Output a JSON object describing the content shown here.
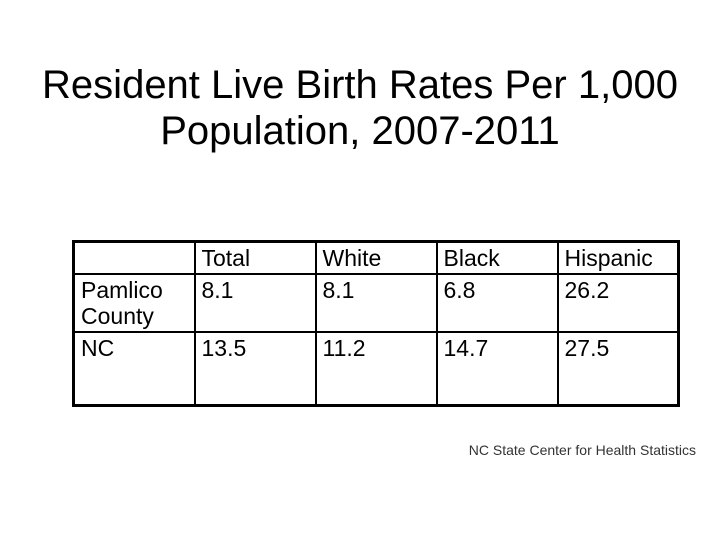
{
  "slide": {
    "background": "#ffffff",
    "text_color": "#000000",
    "title_line1": "Resident Live Birth Rates Per 1,000",
    "title_line2": "Population, 2007-2011",
    "credit": "NC State Center for Health Statistics"
  },
  "chart_data": {
    "type": "table",
    "title": "Resident Live Birth Rates Per 1,000 Population, 2007-2011",
    "columns": [
      "",
      "Total",
      "White",
      "Black",
      "Hispanic"
    ],
    "rows": [
      {
        "label": "Pamlico County",
        "values": [
          8.1,
          8.1,
          6.8,
          26.2
        ]
      },
      {
        "label": "NC",
        "values": [
          13.5,
          11.2,
          14.7,
          27.5
        ]
      }
    ],
    "source": "NC State Center for Health Statistics",
    "layout": {
      "border_color": "#000000",
      "header_row": true,
      "grid": true
    }
  }
}
